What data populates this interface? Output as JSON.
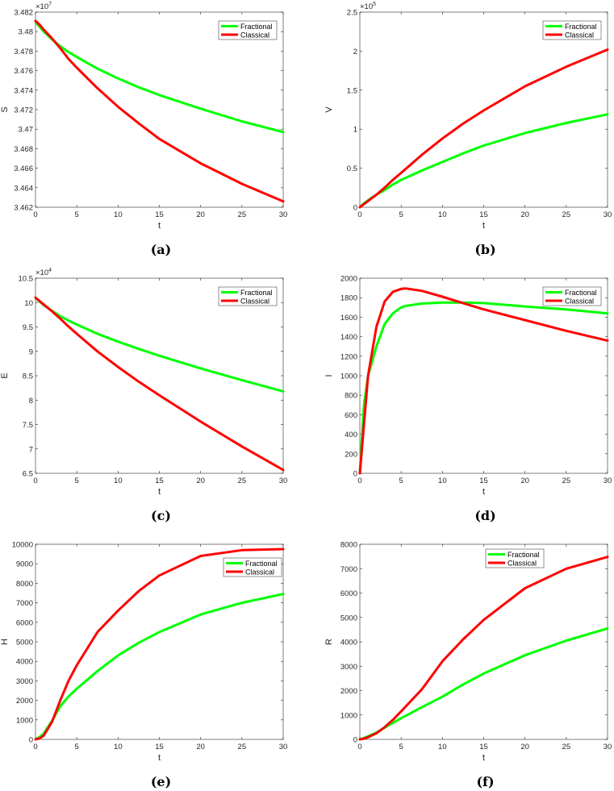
{
  "colors": {
    "fractional": "#00ff00",
    "classical": "#ff0000",
    "axis": "#262626"
  },
  "chart_data": [
    {
      "type": "line",
      "caption": "(a)",
      "xlabel": "t",
      "ylabel": "S",
      "exponent_label": "×10",
      "exponent": "7",
      "xlim": [
        0,
        30
      ],
      "ylim": [
        3.462,
        3.482
      ],
      "legend_position": "top-right",
      "xticks": [
        "0",
        "5",
        "10",
        "15",
        "20",
        "25",
        "30"
      ],
      "yticks": [
        "3.462",
        "3.464",
        "3.466",
        "3.468",
        "3.47",
        "3.472",
        "3.474",
        "3.476",
        "3.478",
        "3.48",
        "3.482"
      ],
      "x": [
        0,
        0.5,
        1,
        2,
        3,
        4,
        5,
        7.5,
        10,
        12.5,
        15,
        20,
        25,
        30
      ],
      "series": [
        {
          "name": "Fractional",
          "values": [
            3.481,
            3.4805,
            3.48,
            3.4792,
            3.4785,
            3.4779,
            3.4774,
            3.4762,
            3.4752,
            3.4743,
            3.4735,
            3.4721,
            3.4708,
            3.4697
          ]
        },
        {
          "name": "Classical",
          "values": [
            3.4811,
            3.4807,
            3.4802,
            3.4793,
            3.4783,
            3.4772,
            3.4763,
            3.4742,
            3.4723,
            3.4706,
            3.469,
            3.4665,
            3.4644,
            3.4626
          ]
        }
      ]
    },
    {
      "type": "line",
      "caption": "(b)",
      "xlabel": "t",
      "ylabel": "V",
      "exponent_label": "×10",
      "exponent": "5",
      "xlim": [
        0,
        30
      ],
      "ylim": [
        0,
        2.5
      ],
      "legend_position": "top-right",
      "xticks": [
        "0",
        "5",
        "10",
        "15",
        "20",
        "25",
        "30"
      ],
      "yticks": [
        "0",
        "0.5",
        "1",
        "1.5",
        "2",
        "2.5"
      ],
      "x": [
        0,
        0.5,
        1,
        2,
        3,
        4,
        5,
        7.5,
        10,
        12.5,
        15,
        20,
        25,
        30
      ],
      "series": [
        {
          "name": "Fractional",
          "values": [
            0,
            0.05,
            0.09,
            0.16,
            0.22,
            0.29,
            0.35,
            0.47,
            0.58,
            0.69,
            0.79,
            0.95,
            1.08,
            1.19
          ]
        },
        {
          "name": "Classical",
          "values": [
            0,
            0.04,
            0.08,
            0.16,
            0.25,
            0.35,
            0.44,
            0.67,
            0.88,
            1.07,
            1.24,
            1.55,
            1.8,
            2.02
          ]
        }
      ]
    },
    {
      "type": "line",
      "caption": "(c)",
      "xlabel": "t",
      "ylabel": "E",
      "exponent_label": "×10",
      "exponent": "4",
      "xlim": [
        0,
        30
      ],
      "ylim": [
        6.5,
        10.5
      ],
      "legend_position": "top-right",
      "xticks": [
        "0",
        "5",
        "10",
        "15",
        "20",
        "25",
        "30"
      ],
      "yticks": [
        "6.5",
        "7",
        "7.5",
        "8",
        "8.5",
        "9",
        "9.5",
        "10",
        "10.5"
      ],
      "x": [
        0,
        0.5,
        1,
        2,
        3,
        4,
        5,
        7.5,
        10,
        12.5,
        15,
        20,
        25,
        30
      ],
      "series": [
        {
          "name": "Fractional",
          "values": [
            10.1,
            10.02,
            9.95,
            9.83,
            9.72,
            9.63,
            9.55,
            9.36,
            9.2,
            9.05,
            8.91,
            8.65,
            8.41,
            8.18
          ]
        },
        {
          "name": "Classical",
          "values": [
            10.1,
            10.03,
            9.96,
            9.82,
            9.67,
            9.51,
            9.36,
            9.0,
            8.68,
            8.38,
            8.1,
            7.56,
            7.05,
            6.57
          ]
        }
      ]
    },
    {
      "type": "line",
      "caption": "(d)",
      "xlabel": "t",
      "ylabel": "I",
      "exponent_label": "",
      "exponent": "",
      "xlim": [
        0,
        30
      ],
      "ylim": [
        0,
        2000
      ],
      "legend_position": "top-right",
      "xticks": [
        "0",
        "5",
        "10",
        "15",
        "20",
        "25",
        "30"
      ],
      "yticks": [
        "0",
        "200",
        "400",
        "600",
        "800",
        "1000",
        "1200",
        "1400",
        "1600",
        "1800",
        "2000"
      ],
      "x": [
        0,
        0.5,
        1,
        2,
        3,
        4,
        5,
        5.5,
        7.5,
        10,
        12.5,
        15,
        20,
        25,
        30
      ],
      "series": [
        {
          "name": "Fractional",
          "values": [
            0,
            700,
            1000,
            1300,
            1530,
            1640,
            1700,
            1715,
            1740,
            1750,
            1750,
            1745,
            1710,
            1680,
            1640
          ]
        },
        {
          "name": "Classical",
          "values": [
            0,
            500,
            1000,
            1500,
            1760,
            1860,
            1890,
            1895,
            1870,
            1810,
            1745,
            1680,
            1570,
            1460,
            1360
          ]
        }
      ]
    },
    {
      "type": "line",
      "caption": "(e)",
      "xlabel": "t",
      "ylabel": "H",
      "exponent_label": "",
      "exponent": "",
      "xlim": [
        0,
        30
      ],
      "ylim": [
        0,
        10000
      ],
      "legend_position": "upper-right",
      "xticks": [
        "0",
        "5",
        "10",
        "15",
        "20",
        "25",
        "30"
      ],
      "yticks": [
        "0",
        "1000",
        "2000",
        "3000",
        "4000",
        "5000",
        "6000",
        "7000",
        "8000",
        "9000",
        "10000"
      ],
      "x": [
        0,
        0.5,
        1,
        2,
        3,
        4,
        5,
        7.5,
        10,
        12.5,
        15,
        20,
        25,
        30
      ],
      "series": [
        {
          "name": "Fractional",
          "values": [
            0,
            120,
            300,
            950,
            1700,
            2200,
            2600,
            3500,
            4300,
            4950,
            5500,
            6400,
            7000,
            7450
          ]
        },
        {
          "name": "Classical",
          "values": [
            0,
            50,
            200,
            900,
            2000,
            3000,
            3800,
            5500,
            6600,
            7600,
            8400,
            9400,
            9700,
            9750
          ]
        }
      ]
    },
    {
      "type": "line",
      "caption": "(f)",
      "xlabel": "t",
      "ylabel": "R",
      "exponent_label": "",
      "exponent": "",
      "xlim": [
        0,
        30
      ],
      "ylim": [
        0,
        8000
      ],
      "legend_position": "top-center",
      "xticks": [
        "0",
        "5",
        "10",
        "15",
        "20",
        "25",
        "30"
      ],
      "yticks": [
        "0",
        "1000",
        "2000",
        "3000",
        "4000",
        "5000",
        "6000",
        "7000",
        "8000"
      ],
      "x": [
        0,
        0.5,
        1,
        2,
        3,
        4,
        5,
        7.5,
        10,
        12.5,
        15,
        20,
        25,
        30
      ],
      "series": [
        {
          "name": "Fractional",
          "values": [
            0,
            60,
            130,
            280,
            480,
            680,
            870,
            1320,
            1750,
            2250,
            2700,
            3450,
            4050,
            4550
          ]
        },
        {
          "name": "Classical",
          "values": [
            0,
            30,
            90,
            250,
            500,
            800,
            1150,
            2050,
            3200,
            4100,
            4900,
            6200,
            7000,
            7480
          ]
        }
      ]
    }
  ]
}
